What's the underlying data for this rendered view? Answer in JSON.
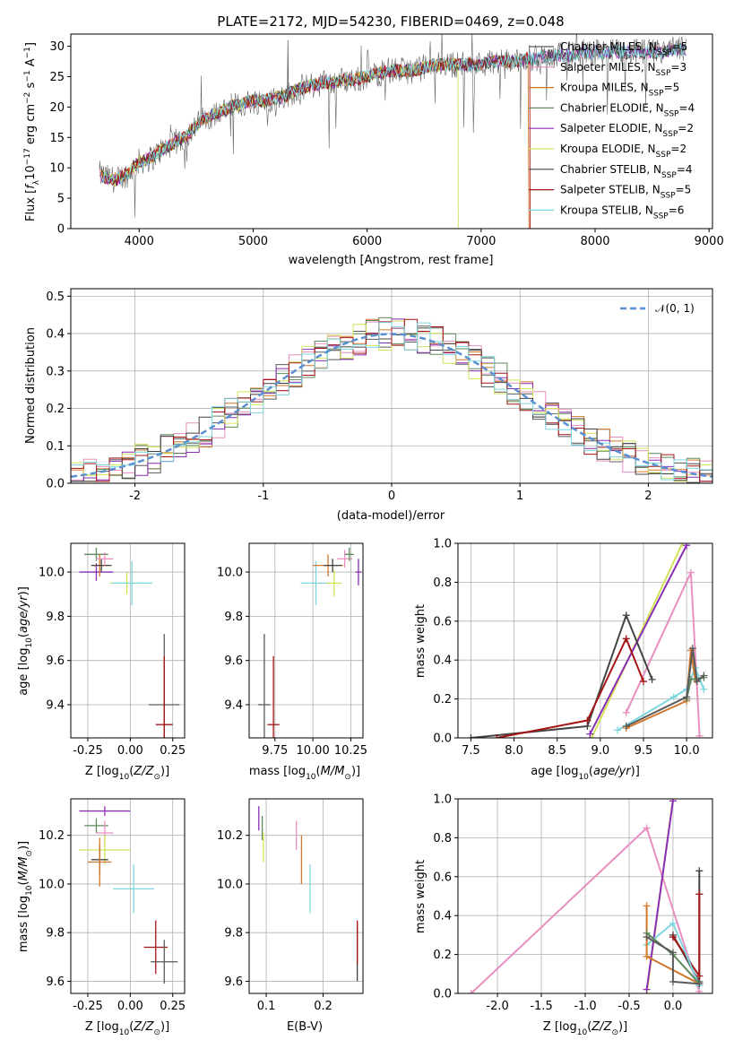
{
  "figure_title": "PLATE=2172, MJD=54230, FIBERID=0469, z=0.048",
  "colors": {
    "Chabrier MILES": "#5a5a5a",
    "Salpeter MILES": "#e88fc0",
    "Kroupa MILES": "#d2772a",
    "Chabrier ELODIE": "#5e8a5e",
    "Salpeter ELODIE": "#8a2fb5",
    "Kroupa ELODIE": "#d4e25a",
    "Chabrier STELIB": "#444444",
    "Salpeter STELIB": "#a51515",
    "Kroupa STELIB": "#7dd7e0"
  },
  "chart_data": [
    {
      "id": "spectrum",
      "type": "line",
      "title": "PLATE=2172, MJD=54230, FIBERID=0469, z=0.048",
      "xlabel": "wavelength [Angstrom, rest frame]",
      "ylabel": "Flux [f_λ 10^-17 erg cm^-2 s^-1 A^-1]",
      "xlim": [
        3400,
        9030
      ],
      "ylim": [
        0,
        32
      ],
      "xticks": [
        4000,
        5000,
        6000,
        7000,
        8000,
        9000
      ],
      "yticks": [
        0,
        5,
        10,
        15,
        20,
        25,
        30
      ],
      "legend_position": "right",
      "legend": [
        {
          "name": "Chabrier MILES",
          "label": "Chabrier MILES, N",
          "sub": "SSP",
          "tail": "=5"
        },
        {
          "name": "Salpeter MILES",
          "label": "Salpeter MILES, N",
          "sub": "SSP",
          "tail": "=3"
        },
        {
          "name": "Kroupa MILES",
          "label": "Kroupa MILES, N",
          "sub": "SSP",
          "tail": "=5"
        },
        {
          "name": "Chabrier ELODIE",
          "label": "Chabrier ELODIE, N",
          "sub": "SSP",
          "tail": "=4"
        },
        {
          "name": "Salpeter ELODIE",
          "label": "Salpeter ELODIE, N",
          "sub": "SSP",
          "tail": "=2"
        },
        {
          "name": "Kroupa ELODIE",
          "label": "Kroupa ELODIE, N",
          "sub": "SSP",
          "tail": "=2"
        },
        {
          "name": "Chabrier STELIB",
          "label": "Chabrier STELIB, N",
          "sub": "SSP",
          "tail": "=4"
        },
        {
          "name": "Salpeter STELIB",
          "label": "Salpeter STELIB, N",
          "sub": "SSP",
          "tail": "=5"
        },
        {
          "name": "Kroupa STELIB",
          "label": "Kroupa STELIB, N",
          "sub": "SSP",
          "tail": "=6"
        }
      ],
      "data_trend": [
        [
          3650,
          9
        ],
        [
          3700,
          8.5
        ],
        [
          3800,
          8
        ],
        [
          3900,
          9
        ],
        [
          4000,
          11
        ],
        [
          4100,
          11.5
        ],
        [
          4200,
          13
        ],
        [
          4300,
          14
        ],
        [
          4400,
          15
        ],
        [
          4500,
          17
        ],
        [
          4600,
          18.5
        ],
        [
          4700,
          19
        ],
        [
          4800,
          20
        ],
        [
          4900,
          20.5
        ],
        [
          5000,
          21
        ],
        [
          5100,
          21
        ],
        [
          5200,
          21.5
        ],
        [
          5300,
          22
        ],
        [
          5400,
          23
        ],
        [
          5500,
          23.5
        ],
        [
          5600,
          24
        ],
        [
          5700,
          24
        ],
        [
          5800,
          24.5
        ],
        [
          5900,
          24.5
        ],
        [
          6000,
          25
        ],
        [
          6100,
          25.5
        ],
        [
          6200,
          26
        ],
        [
          6300,
          26
        ],
        [
          6400,
          26
        ],
        [
          6500,
          26.5
        ],
        [
          6600,
          27
        ],
        [
          6700,
          27
        ],
        [
          6800,
          27
        ],
        [
          6900,
          27
        ],
        [
          7000,
          27
        ],
        [
          7100,
          27.5
        ],
        [
          7200,
          27.5
        ],
        [
          7300,
          27.5
        ],
        [
          7400,
          28
        ],
        [
          7500,
          28
        ],
        [
          7600,
          28.5
        ],
        [
          7700,
          28.5
        ],
        [
          7800,
          28.5
        ],
        [
          7900,
          29
        ],
        [
          8000,
          29
        ],
        [
          8100,
          29
        ],
        [
          8200,
          29
        ],
        [
          8300,
          29
        ],
        [
          8400,
          29
        ],
        [
          8500,
          29
        ],
        [
          8600,
          29
        ],
        [
          8700,
          29.5
        ],
        [
          8800,
          29.5
        ]
      ],
      "model_cutoffs": {
        "Kroupa ELODIE": 6800,
        "Kroupa MILES": 7420,
        "Salpeter STELIB": 7430
      }
    },
    {
      "id": "residual-histogram",
      "type": "bar",
      "xlabel": "(data-model)/error",
      "ylabel": "Normed distribution",
      "xlim": [
        -2.5,
        2.5
      ],
      "ylim": [
        0,
        0.52
      ],
      "xticks": [
        -2,
        -1,
        0,
        1,
        2
      ],
      "yticks": [
        0.0,
        0.1,
        0.2,
        0.3,
        0.4,
        0.5
      ],
      "legend_position": "top-right",
      "legend_label": "𝒩(0, 1)",
      "bin_width": 0.1
    },
    {
      "id": "age-vs-metallicity",
      "type": "scatter",
      "xlabel": "Z [log10(Z/Z⊙)]",
      "ylabel": "age [log10(age/yr)]",
      "xlim": [
        -0.35,
        0.32
      ],
      "ylim": [
        9.25,
        10.13
      ],
      "xticks": [
        -0.25,
        0.0,
        0.25
      ],
      "yticks": [
        9.4,
        9.6,
        9.8,
        10.0
      ],
      "points": [
        {
          "name": "Chabrier MILES",
          "x": 0.2,
          "y": 9.4,
          "xerr": 0.09,
          "yerr": 0.32
        },
        {
          "name": "Salpeter STELIB",
          "x": 0.2,
          "y": 9.31,
          "xerr": 0.05,
          "yerr": 0.31
        },
        {
          "name": "Chabrier ELODIE",
          "x": -0.2,
          "y": 10.08,
          "xerr": 0.07,
          "yerr": 0.03
        },
        {
          "name": "Salpeter ELODIE",
          "x": -0.2,
          "y": 10.0,
          "xerr": 0.1,
          "yerr": 0.04
        },
        {
          "name": "Kroupa MILES",
          "x": -0.18,
          "y": 10.03,
          "xerr": 0.05,
          "yerr": 0.05
        },
        {
          "name": "Chabrier STELIB",
          "x": -0.17,
          "y": 10.03,
          "xerr": 0.06,
          "yerr": 0.03
        },
        {
          "name": "Salpeter MILES",
          "x": -0.15,
          "y": 10.06,
          "xerr": 0.05,
          "yerr": 0.03
        },
        {
          "name": "Kroupa ELODIE",
          "x": -0.02,
          "y": 9.95,
          "xerr": 0.1,
          "yerr": 0.05
        },
        {
          "name": "Kroupa STELIB",
          "x": 0.01,
          "y": 9.95,
          "xerr": 0.12,
          "yerr": 0.1
        }
      ]
    },
    {
      "id": "age-vs-mass",
      "type": "scatter",
      "xlabel": "mass [log10(M/M⊙)]",
      "ylabel": "",
      "xlim": [
        9.58,
        10.33
      ],
      "ylim": [
        9.25,
        10.13
      ],
      "xticks": [
        9.75,
        10.0,
        10.25
      ],
      "yticks": [
        9.4,
        9.6,
        9.8,
        10.0
      ],
      "points": [
        {
          "name": "Chabrier MILES",
          "x": 9.68,
          "y": 9.4,
          "xerr": 0.04,
          "yerr": 0.32
        },
        {
          "name": "Salpeter STELIB",
          "x": 9.74,
          "y": 9.31,
          "xerr": 0.04,
          "yerr": 0.31
        },
        {
          "name": "Kroupa STELIB",
          "x": 10.02,
          "y": 9.95,
          "xerr": 0.1,
          "yerr": 0.1
        },
        {
          "name": "Kroupa ELODIE",
          "x": 10.14,
          "y": 9.95,
          "xerr": 0.05,
          "yerr": 0.06
        },
        {
          "name": "Kroupa MILES",
          "x": 10.1,
          "y": 10.03,
          "xerr": 0.1,
          "yerr": 0.05
        },
        {
          "name": "Chabrier STELIB",
          "x": 10.13,
          "y": 10.03,
          "xerr": 0.06,
          "yerr": 0.03
        },
        {
          "name": "Salpeter MILES",
          "x": 10.21,
          "y": 10.06,
          "xerr": 0.05,
          "yerr": 0.04
        },
        {
          "name": "Chabrier ELODIE",
          "x": 10.24,
          "y": 10.08,
          "xerr": 0.03,
          "yerr": 0.03
        },
        {
          "name": "Salpeter ELODIE",
          "x": 10.3,
          "y": 10.0,
          "xerr": 0.02,
          "yerr": 0.06
        }
      ]
    },
    {
      "id": "mass-weight-vs-age",
      "type": "line",
      "xlabel": "age [log10(age/yr)]",
      "ylabel": "mass weight",
      "xlim": [
        7.35,
        10.3
      ],
      "ylim": [
        0,
        1.0
      ],
      "xticks": [
        7.5,
        8.0,
        8.5,
        9.0,
        9.5,
        10.0
      ],
      "yticks": [
        0.0,
        0.2,
        0.4,
        0.6,
        0.8,
        1.0
      ],
      "series": [
        {
          "name": "Kroupa ELODIE",
          "x": [
            8.9,
            9.95
          ],
          "y": [
            0.0,
            1.0
          ]
        },
        {
          "name": "Salpeter ELODIE",
          "x": [
            8.88,
            10.0
          ],
          "y": [
            0.02,
            0.99
          ]
        },
        {
          "name": "Salpeter MILES",
          "x": [
            9.3,
            10.05,
            10.15
          ],
          "y": [
            0.13,
            0.85,
            0.01
          ]
        },
        {
          "name": "Chabrier STELIB",
          "x": [
            7.5,
            8.85,
            9.3,
            9.6
          ],
          "y": [
            0.0,
            0.06,
            0.63,
            0.3
          ]
        },
        {
          "name": "Salpeter STELIB",
          "x": [
            7.8,
            8.85,
            9.3,
            9.5
          ],
          "y": [
            0.0,
            0.09,
            0.51,
            0.29
          ]
        },
        {
          "name": "Kroupa STELIB",
          "x": [
            9.2,
            9.85,
            10.0,
            10.1,
            10.2
          ],
          "y": [
            0.04,
            0.21,
            0.25,
            0.36,
            0.25
          ]
        },
        {
          "name": "Kroupa MILES",
          "x": [
            9.3,
            10.0,
            10.05,
            10.1
          ],
          "y": [
            0.05,
            0.19,
            0.45,
            0.3
          ]
        },
        {
          "name": "Chabrier ELODIE",
          "x": [
            10.0,
            10.05,
            10.2
          ],
          "y": [
            0.2,
            0.3,
            0.31
          ]
        },
        {
          "name": "Chabrier MILES",
          "x": [
            9.3,
            10.0,
            10.07,
            10.12,
            10.2
          ],
          "y": [
            0.06,
            0.21,
            0.46,
            0.29,
            0.32
          ]
        }
      ]
    },
    {
      "id": "mass-vs-metallicity",
      "type": "scatter",
      "xlabel": "Z [log10(Z/Z⊙)]",
      "ylabel": "mass [log10(M/M⊙)]",
      "xlim": [
        -0.35,
        0.32
      ],
      "ylim": [
        9.55,
        10.35
      ],
      "xticks": [
        -0.25,
        0.0,
        0.25
      ],
      "yticks": [
        9.6,
        9.8,
        10.0,
        10.2
      ],
      "points": [
        {
          "name": "Salpeter ELODIE",
          "x": -0.15,
          "y": 10.3,
          "xerr": 0.15,
          "yerr": 0.02
        },
        {
          "name": "Chabrier ELODIE",
          "x": -0.2,
          "y": 10.24,
          "xerr": 0.07,
          "yerr": 0.03
        },
        {
          "name": "Salpeter MILES",
          "x": -0.15,
          "y": 10.21,
          "xerr": 0.05,
          "yerr": 0.05
        },
        {
          "name": "Kroupa ELODIE",
          "x": -0.15,
          "y": 10.14,
          "xerr": 0.15,
          "yerr": 0.06
        },
        {
          "name": "Chabrier STELIB",
          "x": -0.18,
          "y": 10.1,
          "xerr": 0.05,
          "yerr": 0.06
        },
        {
          "name": "Kroupa MILES",
          "x": -0.18,
          "y": 10.09,
          "xerr": 0.07,
          "yerr": 0.1
        },
        {
          "name": "Kroupa STELIB",
          "x": 0.02,
          "y": 9.98,
          "xerr": 0.12,
          "yerr": 0.1
        },
        {
          "name": "Salpeter STELIB",
          "x": 0.15,
          "y": 9.74,
          "xerr": 0.07,
          "yerr": 0.11
        },
        {
          "name": "Chabrier MILES",
          "x": 0.2,
          "y": 9.68,
          "xerr": 0.08,
          "yerr": 0.09
        }
      ]
    },
    {
      "id": "mass-vs-extinction",
      "type": "scatter",
      "xlabel": "E(B-V)",
      "ylabel": "",
      "xlim": [
        0.07,
        0.27
      ],
      "ylim": [
        9.55,
        10.35
      ],
      "xticks": [
        0.1,
        0.2
      ],
      "yticks": [
        9.6,
        9.8,
        10.0,
        10.2
      ],
      "points": [
        {
          "name": "Salpeter ELODIE",
          "x": 0.087,
          "y": 10.27,
          "yerr": 0.05
        },
        {
          "name": "Chabrier ELODIE",
          "x": 0.093,
          "y": 10.23,
          "yerr": 0.05
        },
        {
          "name": "Kroupa ELODIE",
          "x": 0.095,
          "y": 10.15,
          "yerr": 0.06
        },
        {
          "name": "Salpeter MILES",
          "x": 0.153,
          "y": 10.2,
          "yerr": 0.06
        },
        {
          "name": "Kroupa MILES",
          "x": 0.162,
          "y": 10.1,
          "yerr": 0.1
        },
        {
          "name": "Kroupa STELIB",
          "x": 0.177,
          "y": 9.98,
          "yerr": 0.1
        },
        {
          "name": "Chabrier STELIB",
          "x": 0.26,
          "y": 9.72,
          "yerr": 0.12
        },
        {
          "name": "Salpeter STELIB",
          "x": 0.26,
          "y": 9.76,
          "yerr": 0.09
        }
      ]
    },
    {
      "id": "mass-weight-vs-metallicity",
      "type": "line",
      "xlabel": "Z [log10(Z/Z⊙)]",
      "ylabel": "mass weight",
      "xlim": [
        -2.45,
        0.45
      ],
      "ylim": [
        0,
        1.0
      ],
      "xticks": [
        -2.0,
        -1.5,
        -1.0,
        -0.5,
        0.0
      ],
      "yticks": [
        0.0,
        0.2,
        0.4,
        0.6,
        0.8,
        1.0
      ],
      "series": [
        {
          "name": "Salpeter MILES",
          "x": [
            -2.3,
            -0.3,
            0.3
          ],
          "y": [
            0.0,
            0.85,
            0.01
          ]
        },
        {
          "name": "Kroupa ELODIE",
          "x": [
            -0.3,
            0.0
          ],
          "y": [
            0.0,
            1.0
          ]
        },
        {
          "name": "Salpeter ELODIE",
          "x": [
            -0.3,
            0.0
          ],
          "y": [
            0.02,
            0.99
          ]
        },
        {
          "name": "Chabrier STELIB",
          "x": [
            0.0,
            0.3,
            0.3
          ],
          "y": [
            0.3,
            0.06,
            0.63
          ]
        },
        {
          "name": "Salpeter STELIB",
          "x": [
            0.0,
            0.3,
            0.3
          ],
          "y": [
            0.29,
            0.09,
            0.51
          ]
        },
        {
          "name": "Kroupa STELIB",
          "x": [
            -0.3,
            0.0,
            0.3
          ],
          "y": [
            0.25,
            0.36,
            0.04
          ]
        },
        {
          "name": "Kroupa MILES",
          "x": [
            -0.3,
            -0.3,
            0.3
          ],
          "y": [
            0.45,
            0.19,
            0.05
          ]
        },
        {
          "name": "Chabrier ELODIE",
          "x": [
            -0.3,
            0.0,
            0.3
          ],
          "y": [
            0.31,
            0.2,
            0.05
          ]
        },
        {
          "name": "Chabrier MILES",
          "x": [
            -0.3,
            0.0,
            0.0,
            0.3
          ],
          "y": [
            0.29,
            0.21,
            0.06,
            0.05
          ]
        }
      ]
    }
  ]
}
